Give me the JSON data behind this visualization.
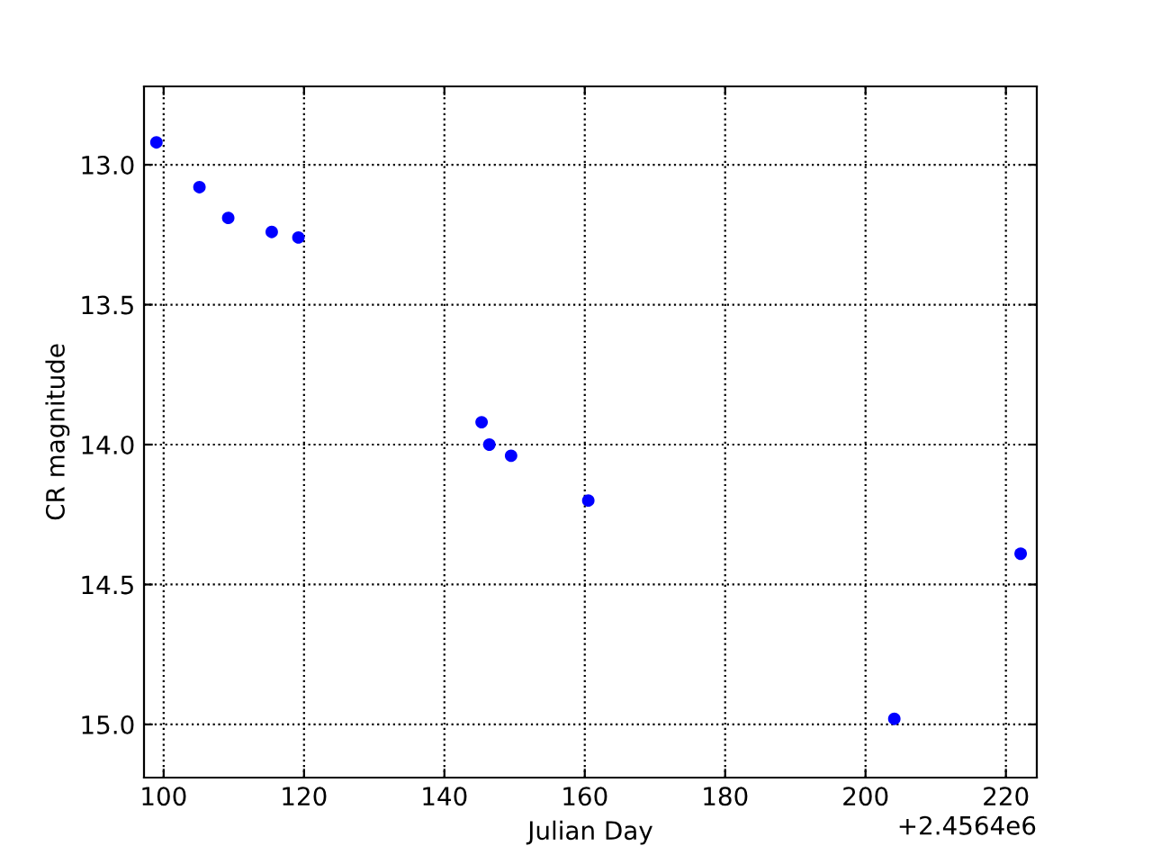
{
  "chart_data": {
    "type": "scatter",
    "xlabel": "Julian Day",
    "ylabel": "CR magnitude",
    "x": [
      98.97,
      105.1,
      109.2,
      115.4,
      119.2,
      145.3,
      146.4,
      149.5,
      160.5,
      204.1,
      222.1
    ],
    "series": [
      {
        "color": "#0000ff",
        "values": [
          12.92,
          13.08,
          13.19,
          13.24,
          13.26,
          13.92,
          14.0,
          14.04,
          14.2,
          14.98,
          14.39
        ]
      }
    ],
    "xlim": [
      97.2,
      224.4
    ],
    "xticks": [
      100,
      120,
      140,
      160,
      180,
      200,
      220
    ],
    "ylim": [
      15.19,
      12.72
    ],
    "yticks": [
      {
        "value": 13.0,
        "label": "13.0"
      },
      {
        "value": 13.5,
        "label": "13.5"
      },
      {
        "value": 14.0,
        "label": "14.0"
      },
      {
        "value": 14.5,
        "label": "14.5"
      },
      {
        "value": 15.0,
        "label": "15.0"
      }
    ],
    "annotations": [
      "+2.4564e6"
    ],
    "grid": true,
    "marker": "circle",
    "legend": false
  }
}
